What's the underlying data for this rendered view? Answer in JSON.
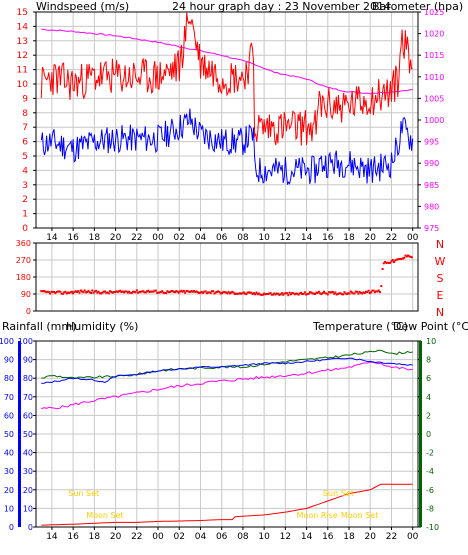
{
  "colors": {
    "wind_speed": "#ff0000",
    "wind_avg": "#0000ff",
    "barometer": "#ff00ff",
    "direction": "#ff0000",
    "rainfall": "#ff0000",
    "humidity": "#0000ff",
    "temperature": "#006400",
    "dew_point": "#ff00ff",
    "annotation": "#ffcc00",
    "grid": "#c8c8c8"
  },
  "chart_data": [
    {
      "type": "line",
      "title": "24 hour graph day : 23 November 2014",
      "ylabel_left": "Windspeed (m/s)",
      "ylabel_right": "Barometer (hpa)",
      "x_ticks": [
        "14",
        "16",
        "18",
        "20",
        "22",
        "00",
        "02",
        "04",
        "06",
        "08",
        "10",
        "12",
        "14",
        "16",
        "18",
        "20",
        "22",
        "00"
      ],
      "ylim_left": [
        0,
        15
      ],
      "yticks_left": [
        0,
        1,
        2,
        3,
        4,
        5,
        6,
        7,
        8,
        9,
        10,
        11,
        12,
        13,
        14,
        15
      ],
      "ylim_right": [
        975,
        1025
      ],
      "yticks_right": [
        975,
        980,
        985,
        990,
        995,
        1000,
        1005,
        1010,
        1015,
        1020,
        1025
      ],
      "grid": true,
      "series": [
        {
          "name": "Windspeed",
          "key": "gust",
          "axis": "left",
          "x": [
            13,
            14,
            16,
            18,
            20,
            22,
            24,
            26,
            27,
            28,
            30,
            32,
            33,
            33.1,
            39,
            39.1,
            42,
            44,
            46,
            46.7,
            47,
            48
          ],
          "values": [
            10,
            10.5,
            10,
            10.5,
            10.5,
            10.5,
            10.5,
            11.2,
            15,
            11.5,
            10.5,
            10.5,
            12,
            7,
            7,
            8.5,
            8.5,
            9,
            9.5,
            10.5,
            13.5,
            11
          ]
        },
        {
          "name": "Windspeed",
          "key": "avg",
          "axis": "left",
          "x": [
            13,
            14,
            16,
            18,
            20,
            22,
            24,
            26,
            27,
            28,
            30,
            32,
            33,
            33.1,
            39,
            39.1,
            42,
            44,
            46,
            46.7,
            47,
            48
          ],
          "values": [
            5.8,
            6,
            5.5,
            6,
            6.2,
            6.2,
            6.2,
            7,
            7.5,
            6.5,
            6,
            6,
            6.5,
            4,
            4,
            4.5,
            4.5,
            4,
            4.5,
            6,
            7,
            6
          ]
        },
        {
          "name": "Barometer",
          "key": "baro",
          "axis": "right",
          "x": [
            13,
            16,
            20,
            24,
            27,
            30,
            33,
            35,
            38,
            40,
            42,
            44,
            46,
            47,
            48
          ],
          "values": [
            1021,
            1020.5,
            1019.5,
            1018,
            1016.5,
            1015,
            1013,
            1011,
            1009.5,
            1007.5,
            1006.5,
            1006.2,
            1006.5,
            1006.8,
            1007
          ]
        }
      ]
    },
    {
      "type": "scatter",
      "ylabel_right_letters": [
        "N",
        "W",
        "S",
        "E",
        "N"
      ],
      "ylim": [
        0,
        360
      ],
      "yticks": [
        0,
        90,
        180,
        270,
        360
      ],
      "series": [
        {
          "name": "Wind direction",
          "x": [
            13,
            15,
            17,
            19,
            21,
            23,
            25,
            27,
            29,
            31,
            33,
            35,
            37,
            39,
            41,
            43,
            45,
            45.2,
            46,
            47,
            47.6,
            48
          ],
          "values": [
            100,
            96,
            104,
            98,
            102,
            104,
            100,
            102,
            100,
            96,
            92,
            90,
            90,
            96,
            94,
            98,
            105,
            255,
            262,
            275,
            300,
            280
          ]
        }
      ]
    },
    {
      "type": "line",
      "ylabel_left": "Rainfall (mm)",
      "ylabel_left2": "Humidity (%)",
      "ylabel_right": "Temperature (°C)",
      "ylabel_right2": "Dew Point (°C)",
      "ylim_left": [
        0,
        100
      ],
      "yticks_left": [
        0,
        10,
        20,
        30,
        40,
        50,
        60,
        70,
        80,
        90,
        100
      ],
      "ylim_right": [
        -10,
        10
      ],
      "yticks_right": [
        -10,
        -8,
        -6,
        -4,
        -2,
        0,
        2,
        4,
        6,
        8,
        10
      ],
      "grid": true,
      "series": [
        {
          "name": "Rainfall",
          "key": "rain",
          "axis": "left",
          "x": [
            13,
            16,
            18,
            20,
            22,
            24,
            26,
            28,
            30,
            31,
            31.1,
            34,
            36,
            38,
            40,
            42,
            44,
            45,
            46,
            48
          ],
          "values": [
            1,
            1.5,
            2,
            2.5,
            2.5,
            3,
            3.2,
            3.5,
            4,
            4,
            5.5,
            6.5,
            8,
            10,
            14,
            18,
            20,
            23,
            23,
            23
          ]
        },
        {
          "name": "Humidity",
          "key": "hum",
          "axis": "left",
          "x": [
            13,
            14,
            16,
            18,
            19,
            20,
            22,
            24,
            26,
            28,
            30,
            32,
            34,
            36,
            38,
            40,
            42,
            44,
            46,
            48
          ],
          "values": [
            77,
            78,
            80,
            79,
            78,
            81,
            82,
            84,
            85,
            86,
            86,
            87,
            88,
            88,
            89,
            90,
            91,
            89,
            88,
            87
          ]
        },
        {
          "name": "Temperature",
          "key": "temp",
          "axis": "right",
          "x": [
            13,
            14,
            16,
            18,
            20,
            22,
            24,
            26,
            28,
            30,
            32,
            34,
            36,
            38,
            40,
            42,
            44,
            45,
            46,
            48
          ],
          "values": [
            6,
            6.3,
            6,
            6.1,
            6.2,
            6.4,
            6.8,
            7,
            7.1,
            7.2,
            7.2,
            7.5,
            7.8,
            8,
            8.2,
            8.5,
            8.8,
            9.1,
            8.6,
            8.9
          ]
        },
        {
          "name": "Dew Point",
          "key": "dew",
          "axis": "right",
          "x": [
            13,
            15,
            17,
            19,
            21,
            23,
            25,
            27,
            29,
            31,
            33,
            35,
            37,
            39,
            41,
            43,
            44,
            45,
            46,
            48
          ],
          "values": [
            2.7,
            2.9,
            3.4,
            3.8,
            4.2,
            4.6,
            5,
            5.3,
            5.6,
            5.8,
            6,
            6.2,
            6.4,
            6.7,
            7,
            7.4,
            7.8,
            7.6,
            7.2,
            6.9
          ]
        }
      ],
      "annotations": [
        {
          "text": "Sun Set",
          "x": 17
        },
        {
          "text": "Moon Set",
          "x": 19
        },
        {
          "text": "Moon Rise",
          "x": 39
        },
        {
          "text": "Sun Set",
          "x": 41
        },
        {
          "text": "Moon Set",
          "x": 43
        }
      ]
    }
  ]
}
